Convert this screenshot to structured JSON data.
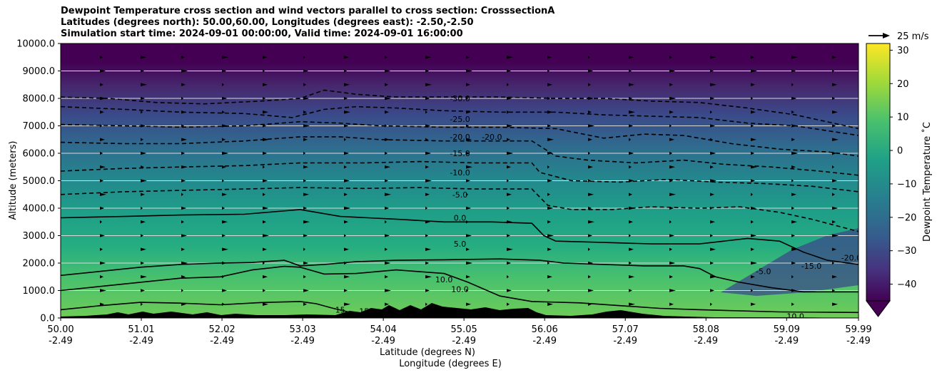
{
  "title_lines": [
    "Dewpoint Temperature cross section and wind vectors parallel to cross section: CrosssectionA",
    "Latitudes (degrees north): 50.00,60.00, Longitudes (degrees east): -2.50,-2.50",
    "Simulation start time: 2024-09-01 00:00:00, Valid time: 2024-09-01 16:00:00"
  ],
  "chart_data": {
    "type": "heatmap",
    "variable": "Dewpoint Temperature",
    "xlabel_lat": "Latitude (degrees N)",
    "xlabel_lon": "Longitude (degrees E)",
    "ylabel": "Altitude (meters)",
    "ylim": [
      0,
      10000
    ],
    "xlim": [
      50.0,
      59.99
    ],
    "x_ticks": [
      {
        "lat": "50.00",
        "lon": "-2.49"
      },
      {
        "lat": "51.01",
        "lon": "-2.49"
      },
      {
        "lat": "52.02",
        "lon": "-2.49"
      },
      {
        "lat": "53.03",
        "lon": "-2.49"
      },
      {
        "lat": "54.04",
        "lon": "-2.49"
      },
      {
        "lat": "55.05",
        "lon": "-2.49"
      },
      {
        "lat": "56.06",
        "lon": "-2.49"
      },
      {
        "lat": "57.07",
        "lon": "-2.49"
      },
      {
        "lat": "58.08",
        "lon": "-2.49"
      },
      {
        "lat": "59.09",
        "lon": "-2.49"
      },
      {
        "lat": "59.99",
        "lon": "-2.49"
      }
    ],
    "y_ticks": [
      "0.0",
      "1000.0",
      "2000.0",
      "3000.0",
      "4000.0",
      "5000.0",
      "6000.0",
      "7000.0",
      "8000.0",
      "9000.0",
      "10000.0"
    ],
    "grid": "horizontal",
    "colorbar": {
      "label": "Dewpoint Temperature $^\\circ$C",
      "label_text": "Dewpoint Temperature ˚C",
      "range": [
        -45,
        32
      ],
      "ticks": [
        "30",
        "20",
        "10",
        "0",
        "−10",
        "−20",
        "−30",
        "−40"
      ],
      "tick_values": [
        30,
        20,
        10,
        0,
        -10,
        -20,
        -30,
        -40
      ],
      "extend": "min",
      "colormap": "viridis"
    },
    "wind_key": "25 m/s",
    "contours": [
      {
        "level": 15,
        "label": "15",
        "style": "solid",
        "points": [
          [
            50.0,
            300
          ],
          [
            50.5,
            450
          ],
          [
            51.0,
            570
          ],
          [
            51.5,
            540
          ],
          [
            52.0,
            480
          ],
          [
            52.5,
            560
          ],
          [
            53.0,
            600
          ],
          [
            53.2,
            520
          ],
          [
            53.4,
            360
          ],
          [
            53.6,
            220
          ],
          [
            53.8,
            100
          ]
        ]
      },
      {
        "level": 10,
        "label": "10.0",
        "style": "solid",
        "points": [
          [
            50.0,
            1000
          ],
          [
            50.5,
            1150
          ],
          [
            51.0,
            1300
          ],
          [
            51.5,
            1450
          ],
          [
            52.0,
            1500
          ],
          [
            52.4,
            1750
          ],
          [
            52.8,
            1880
          ],
          [
            53.0,
            1850
          ],
          [
            53.3,
            1600
          ],
          [
            53.7,
            1620
          ],
          [
            54.2,
            1750
          ],
          [
            54.8,
            1620
          ],
          [
            55.1,
            1300
          ],
          [
            55.5,
            800
          ],
          [
            55.9,
            600
          ],
          [
            56.5,
            550
          ],
          [
            57.0,
            450
          ],
          [
            57.5,
            350
          ],
          [
            58.0,
            300
          ],
          [
            58.5,
            260
          ],
          [
            59.0,
            220
          ],
          [
            59.99,
            200
          ]
        ]
      },
      {
        "level": 5,
        "label": "5.0",
        "style": "solid",
        "points": [
          [
            50.0,
            1550
          ],
          [
            50.5,
            1700
          ],
          [
            51.0,
            1850
          ],
          [
            51.5,
            1950
          ],
          [
            52.0,
            2000
          ],
          [
            52.4,
            2020
          ],
          [
            52.8,
            2100
          ],
          [
            53.0,
            1900
          ],
          [
            53.3,
            1950
          ],
          [
            53.7,
            2050
          ],
          [
            54.2,
            2100
          ],
          [
            54.8,
            2120
          ],
          [
            55.5,
            2150
          ],
          [
            56.0,
            2100
          ],
          [
            56.3,
            2000
          ],
          [
            56.8,
            1950
          ],
          [
            57.3,
            1900
          ],
          [
            57.8,
            1900
          ],
          [
            58.0,
            1800
          ],
          [
            58.2,
            1500
          ],
          [
            58.5,
            1300
          ],
          [
            58.9,
            1100
          ],
          [
            59.3,
            950
          ],
          [
            59.99,
            950
          ]
        ]
      },
      {
        "level": 0,
        "label": "0.0",
        "style": "solid",
        "points": [
          [
            50.0,
            3650
          ],
          [
            50.8,
            3700
          ],
          [
            51.5,
            3750
          ],
          [
            52.3,
            3780
          ],
          [
            53.0,
            3950
          ],
          [
            53.5,
            3700
          ],
          [
            54.2,
            3600
          ],
          [
            54.8,
            3500
          ],
          [
            55.4,
            3500
          ],
          [
            55.9,
            3450
          ],
          [
            56.05,
            3000
          ],
          [
            56.2,
            2800
          ],
          [
            56.8,
            2750
          ],
          [
            57.4,
            2700
          ],
          [
            58.0,
            2700
          ],
          [
            58.6,
            2900
          ],
          [
            59.0,
            2800
          ],
          [
            59.3,
            2400
          ],
          [
            59.6,
            2100
          ],
          [
            59.99,
            1950
          ]
        ]
      },
      {
        "level": -5,
        "label": "-5.0",
        "style": "dashed",
        "points": [
          [
            50.0,
            4500
          ],
          [
            50.8,
            4600
          ],
          [
            51.5,
            4650
          ],
          [
            52.3,
            4700
          ],
          [
            53.0,
            4750
          ],
          [
            53.8,
            4720
          ],
          [
            54.5,
            4750
          ],
          [
            55.2,
            4700
          ],
          [
            55.9,
            4700
          ],
          [
            56.1,
            4100
          ],
          [
            56.4,
            3950
          ],
          [
            56.9,
            3950
          ],
          [
            57.4,
            4050
          ],
          [
            58.0,
            4000
          ],
          [
            58.5,
            4050
          ],
          [
            59.0,
            3850
          ],
          [
            59.4,
            3600
          ],
          [
            59.99,
            3150
          ]
        ]
      },
      {
        "level": -10,
        "label": "-10.0",
        "style": "dashed",
        "points": [
          [
            50.0,
            5350
          ],
          [
            50.8,
            5450
          ],
          [
            51.5,
            5500
          ],
          [
            52.3,
            5550
          ],
          [
            53.0,
            5650
          ],
          [
            53.8,
            5650
          ],
          [
            54.5,
            5700
          ],
          [
            55.2,
            5650
          ],
          [
            55.9,
            5650
          ],
          [
            56.0,
            5300
          ],
          [
            56.4,
            5000
          ],
          [
            57.0,
            4950
          ],
          [
            57.6,
            5050
          ],
          [
            58.2,
            4950
          ],
          [
            58.8,
            4900
          ],
          [
            59.4,
            4800
          ],
          [
            59.99,
            4600
          ]
        ]
      },
      {
        "level": -15,
        "label": "-15.0",
        "style": "dashed",
        "points": [
          [
            50.0,
            6400
          ],
          [
            50.8,
            6350
          ],
          [
            51.5,
            6350
          ],
          [
            52.3,
            6450
          ],
          [
            53.0,
            6600
          ],
          [
            53.5,
            6600
          ],
          [
            54.0,
            6500
          ],
          [
            54.8,
            6450
          ],
          [
            55.5,
            6450
          ],
          [
            55.9,
            6450
          ],
          [
            56.2,
            5900
          ],
          [
            56.6,
            5750
          ],
          [
            57.2,
            5650
          ],
          [
            57.8,
            5750
          ],
          [
            58.3,
            5600
          ],
          [
            58.9,
            5500
          ],
          [
            59.5,
            5350
          ],
          [
            59.99,
            5200
          ]
        ]
      },
      {
        "level": -20,
        "label": "-20.0",
        "style": "dashed",
        "points": [
          [
            50.0,
            7050
          ],
          [
            50.8,
            7000
          ],
          [
            51.5,
            6950
          ],
          [
            52.3,
            7000
          ],
          [
            53.0,
            7150
          ],
          [
            53.5,
            7100
          ],
          [
            54.0,
            7000
          ],
          [
            54.8,
            6950
          ],
          [
            55.5,
            6950
          ],
          [
            56.2,
            6900
          ],
          [
            56.8,
            6550
          ],
          [
            57.3,
            6700
          ],
          [
            57.8,
            6650
          ],
          [
            58.4,
            6350
          ],
          [
            59.0,
            6150
          ],
          [
            59.6,
            6050
          ],
          [
            59.99,
            5900
          ]
        ]
      },
      {
        "level": -25,
        "label": "-25.0",
        "style": "dashed",
        "points": [
          [
            50.0,
            7700
          ],
          [
            50.8,
            7600
          ],
          [
            51.5,
            7500
          ],
          [
            52.3,
            7450
          ],
          [
            52.9,
            7300
          ],
          [
            53.3,
            7600
          ],
          [
            53.7,
            7700
          ],
          [
            54.2,
            7650
          ],
          [
            54.8,
            7550
          ],
          [
            55.5,
            7500
          ],
          [
            56.2,
            7500
          ],
          [
            56.8,
            7400
          ],
          [
            57.4,
            7350
          ],
          [
            58.0,
            7300
          ],
          [
            58.6,
            7100
          ],
          [
            59.2,
            7000
          ],
          [
            59.99,
            6650
          ]
        ]
      },
      {
        "level": -30,
        "label": "-30.0",
        "style": "dashed",
        "points": [
          [
            50.0,
            8050
          ],
          [
            50.6,
            8000
          ],
          [
            51.2,
            7850
          ],
          [
            51.8,
            7800
          ],
          [
            52.5,
            7900
          ],
          [
            53.0,
            8000
          ],
          [
            53.3,
            8300
          ],
          [
            53.7,
            8150
          ],
          [
            54.2,
            8050
          ],
          [
            54.8,
            8050
          ],
          [
            55.5,
            8050
          ],
          [
            56.2,
            8000
          ],
          [
            56.8,
            8000
          ],
          [
            57.4,
            7900
          ],
          [
            58.0,
            7850
          ],
          [
            58.6,
            7650
          ],
          [
            59.2,
            7400
          ],
          [
            59.99,
            6900
          ]
        ]
      }
    ],
    "contour_labels": [
      {
        "text": "-30.0",
        "x": 55.0,
        "y": 8000
      },
      {
        "text": "-25.0",
        "x": 55.0,
        "y": 7250
      },
      {
        "text": "-20.0",
        "x": 55.0,
        "y": 6600
      },
      {
        "text": "-20.0",
        "x": 55.4,
        "y": 6600
      },
      {
        "text": "-15.0",
        "x": 55.0,
        "y": 6000
      },
      {
        "text": "-10.0",
        "x": 55.0,
        "y": 5300
      },
      {
        "text": "-5.0",
        "x": 55.0,
        "y": 4500
      },
      {
        "text": "0.0",
        "x": 55.0,
        "y": 3650
      },
      {
        "text": "5.0",
        "x": 55.0,
        "y": 2700
      },
      {
        "text": "10.0",
        "x": 54.8,
        "y": 1400
      },
      {
        "text": "10.0",
        "x": 55.0,
        "y": 1050
      },
      {
        "text": "15",
        "x": 53.5,
        "y": 300
      },
      {
        "text": "15",
        "x": 53.8,
        "y": 250
      },
      {
        "text": "-5.0",
        "x": 58.8,
        "y": 1700
      },
      {
        "text": "-15.0",
        "x": 59.4,
        "y": 1900
      },
      {
        "text": "-20.0",
        "x": 59.9,
        "y": 2200
      },
      {
        "text": "10.0",
        "x": 59.2,
        "y": 60
      }
    ]
  }
}
